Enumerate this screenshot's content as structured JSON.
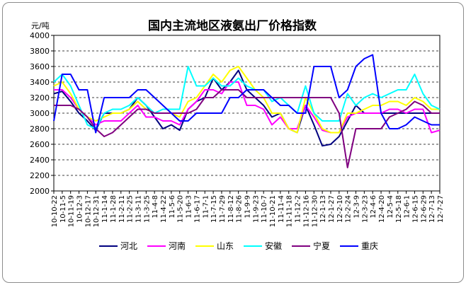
{
  "chart_data": {
    "type": "line",
    "title": "国内主流地区液氨出厂价格指数",
    "ylabel": "元/吨",
    "xlabel": "",
    "ylim": [
      2000,
      4000
    ],
    "yticks": [
      2000,
      2200,
      2400,
      2600,
      2800,
      3000,
      3200,
      3400,
      3600,
      3800,
      4000
    ],
    "grid": "horizontal-dashed",
    "legend": "bottom",
    "categories": [
      "10-10-22",
      "10-11-5",
      "10-11-19",
      "10-12-3",
      "10-12-17",
      "10-12-31",
      "11-1-14",
      "11-1-28",
      "11-2-11",
      "11-2-25",
      "11-3-11",
      "11-3-25",
      "11-4-8",
      "11-4-22",
      "11-5-6",
      "11-5-20",
      "11-6-3",
      "11-6-17",
      "11-7-1",
      "11-7-15",
      "11-7-29",
      "11-8-12",
      "11-8-26",
      "11-9-9",
      "11-9-23",
      "11-10-7",
      "11-10-21",
      "11-11-4",
      "11-11-18",
      "11-12-2",
      "11-12-16",
      "11-12-30",
      "12-1-13",
      "12-1-27",
      "12-2-10",
      "12-2-24",
      "12-3-9",
      "12-3-23",
      "12-4-6",
      "12-4-20",
      "12-5-4",
      "12-5-18",
      "12-6-1",
      "12-6-15",
      "12-6-29",
      "12-7-13",
      "12-7-27"
    ],
    "series": [
      {
        "name": "河北",
        "color": "#000080",
        "values": [
          3250,
          3280,
          3150,
          3000,
          2900,
          2780,
          3000,
          3000,
          3000,
          3050,
          3200,
          3100,
          2950,
          2800,
          2850,
          2780,
          3050,
          3150,
          3200,
          3450,
          3300,
          3400,
          3550,
          3300,
          3200,
          3100,
          2950,
          3000,
          2800,
          2750,
          3100,
          2850,
          2580,
          2600,
          2700,
          2900,
          3100,
          3000,
          3000,
          3000,
          3000,
          3000,
          3000,
          3000,
          3000,
          3000,
          3000
        ]
      },
      {
        "name": "河南",
        "color": "#ff00ff",
        "values": [
          3300,
          3300,
          3200,
          3050,
          2950,
          2850,
          2900,
          2900,
          2900,
          3000,
          3100,
          2950,
          2950,
          2900,
          2900,
          2850,
          3050,
          3150,
          3300,
          3300,
          3250,
          3400,
          3400,
          3100,
          3100,
          3050,
          2850,
          2950,
          2800,
          2800,
          3100,
          2950,
          2780,
          2750,
          2750,
          2950,
          3000,
          3000,
          3000,
          3000,
          3050,
          3050,
          3000,
          3050,
          3050,
          2750,
          2780
        ]
      },
      {
        "name": "山东",
        "color": "#ffff00",
        "values": [
          3350,
          3400,
          3250,
          3050,
          2950,
          2900,
          2950,
          3000,
          3000,
          3050,
          3150,
          3050,
          3000,
          3000,
          3000,
          2950,
          3150,
          3200,
          3350,
          3500,
          3400,
          3550,
          3600,
          3450,
          3300,
          3200,
          3000,
          3000,
          2800,
          2750,
          3200,
          3000,
          2800,
          2750,
          2750,
          3000,
          3000,
          3050,
          3100,
          3100,
          3150,
          3150,
          3100,
          3200,
          3150,
          3050,
          3050
        ]
      },
      {
        "name": "安徽",
        "color": "#00ffff",
        "values": [
          3400,
          3500,
          3350,
          3100,
          2850,
          2800,
          3000,
          3050,
          3050,
          3100,
          3200,
          3100,
          3000,
          3050,
          3050,
          3050,
          3600,
          3350,
          3350,
          3450,
          3350,
          3350,
          3450,
          3350,
          3300,
          3300,
          3150,
          3200,
          3100,
          3000,
          3350,
          3000,
          2900,
          2900,
          2900,
          3250,
          3100,
          3200,
          3250,
          3200,
          3250,
          3300,
          3300,
          3500,
          3250,
          3100,
          3050
        ]
      },
      {
        "name": "宁夏",
        "color": "#800080",
        "values": [
          3100,
          3100,
          3100,
          3050,
          2950,
          2800,
          2700,
          2750,
          2850,
          2950,
          3050,
          3050,
          3000,
          3000,
          3000,
          3000,
          3000,
          3050,
          3200,
          3200,
          3300,
          3300,
          3300,
          3200,
          3200,
          3200,
          3200,
          3200,
          3200,
          3200,
          3200,
          3200,
          3200,
          3200,
          3000,
          2300,
          2800,
          2800,
          2800,
          2800,
          2950,
          3000,
          3050,
          3150,
          3100,
          3000,
          3000
        ]
      },
      {
        "name": "重庆",
        "color": "#0000ff",
        "values": [
          2900,
          3500,
          3500,
          3300,
          3300,
          2750,
          3200,
          3200,
          3200,
          3200,
          3300,
          3300,
          3200,
          3100,
          3000,
          2900,
          2900,
          3000,
          3000,
          3000,
          3000,
          3200,
          3200,
          3300,
          3300,
          3300,
          3200,
          3100,
          3100,
          3000,
          3000,
          3600,
          3600,
          3600,
          3200,
          3300,
          3600,
          3700,
          3750,
          3000,
          2800,
          2800,
          2850,
          2950,
          2900,
          2850,
          2850
        ]
      }
    ]
  }
}
